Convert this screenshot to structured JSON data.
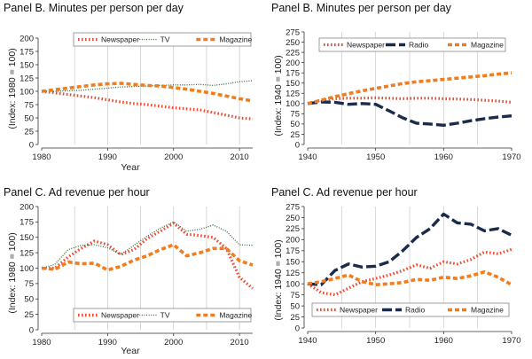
{
  "colors": {
    "newspaper": "#f0492f",
    "tv": "#2f6b3a",
    "radio": "#1b2b4b",
    "magazine": "#f07d1e"
  },
  "chart_data": [
    {
      "type": "line",
      "title": "Panel B. Minutes per person per day",
      "xlabel": "Year",
      "ylabel": "(Index: 1980 = 100)",
      "xlim": [
        1980,
        2012
      ],
      "ylim": [
        0,
        200
      ],
      "xticks": [
        1980,
        1990,
        2000,
        2010
      ],
      "yticks": [
        0,
        25,
        50,
        75,
        100,
        125,
        150,
        175,
        200
      ],
      "vgrid": [
        1985,
        1990,
        1995,
        2000,
        2005,
        2010
      ],
      "legend_position": "top",
      "series": [
        {
          "name": "Newspaper",
          "key": "newspaper",
          "style": "dotted",
          "x": [
            1980,
            1982,
            1984,
            1986,
            1988,
            1990,
            1992,
            1994,
            1996,
            1998,
            2000,
            2002,
            2004,
            2006,
            2008,
            2010,
            2012
          ],
          "values": [
            100,
            97,
            94,
            91,
            88,
            84,
            80,
            77,
            75,
            72,
            69,
            67,
            65,
            60,
            55,
            50,
            48
          ]
        },
        {
          "name": "TV",
          "key": "tv",
          "style": "fine-dot",
          "x": [
            1980,
            1982,
            1984,
            1986,
            1988,
            1990,
            1992,
            1994,
            1996,
            1998,
            2000,
            2002,
            2004,
            2006,
            2008,
            2010,
            2012
          ],
          "values": [
            100,
            100,
            101,
            102,
            104,
            106,
            108,
            109,
            110,
            111,
            112,
            112,
            113,
            111,
            114,
            118,
            120
          ]
        },
        {
          "name": "Magazine",
          "key": "magazine",
          "style": "dashed",
          "x": [
            1980,
            1982,
            1984,
            1986,
            1988,
            1990,
            1992,
            1994,
            1996,
            1998,
            2000,
            2002,
            2004,
            2006,
            2008,
            2010,
            2012
          ],
          "values": [
            100,
            103,
            106,
            109,
            112,
            114,
            115,
            113,
            111,
            110,
            107,
            104,
            100,
            96,
            91,
            86,
            82
          ]
        }
      ]
    },
    {
      "type": "line",
      "title": "Panel B. Minutes per person per day",
      "xlabel": "",
      "ylabel": "(Index: 1940 = 100)",
      "xlim": [
        1940,
        1970
      ],
      "ylim": [
        0,
        275
      ],
      "xticks": [
        1940,
        1950,
        1960,
        1970
      ],
      "yticks": [
        0,
        25,
        50,
        75,
        100,
        125,
        150,
        175,
        200,
        225,
        250,
        275
      ],
      "vgrid": [
        1945,
        1950,
        1955,
        1960,
        1965
      ],
      "legend_position": "top",
      "series": [
        {
          "name": "Newspaper",
          "key": "newspaper",
          "style": "dotted",
          "x": [
            1940,
            1942,
            1944,
            1946,
            1948,
            1950,
            1952,
            1954,
            1956,
            1958,
            1960,
            1962,
            1964,
            1966,
            1968,
            1970
          ],
          "values": [
            100,
            108,
            112,
            113,
            113,
            114,
            113,
            112,
            113,
            113,
            112,
            111,
            110,
            108,
            106,
            103
          ]
        },
        {
          "name": "Radio",
          "key": "radio",
          "style": "dashed-long",
          "x": [
            1940,
            1942,
            1944,
            1946,
            1948,
            1950,
            1952,
            1954,
            1956,
            1958,
            1960,
            1962,
            1964,
            1966,
            1968,
            1970
          ],
          "values": [
            100,
            104,
            103,
            98,
            100,
            98,
            82,
            65,
            52,
            50,
            47,
            52,
            58,
            63,
            67,
            70
          ]
        },
        {
          "name": "Magazine",
          "key": "magazine",
          "style": "dashed",
          "x": [
            1940,
            1942,
            1944,
            1946,
            1948,
            1950,
            1952,
            1954,
            1956,
            1958,
            1960,
            1962,
            1964,
            1966,
            1968,
            1970
          ],
          "values": [
            100,
            108,
            117,
            124,
            131,
            137,
            143,
            149,
            153,
            156,
            159,
            162,
            165,
            168,
            172,
            175
          ]
        }
      ]
    },
    {
      "type": "line",
      "title": "Panel C. Ad revenue per hour",
      "xlabel": "Year",
      "ylabel": "(Index: 1980 = 100)",
      "xlim": [
        1980,
        2012
      ],
      "ylim": [
        0,
        200
      ],
      "xticks": [
        1980,
        1990,
        2000,
        2010
      ],
      "yticks": [
        0,
        25,
        50,
        75,
        100,
        125,
        150,
        175,
        200
      ],
      "vgrid": [
        1985,
        1990,
        1995,
        2000,
        2005,
        2010
      ],
      "legend_position": "bottom",
      "series": [
        {
          "name": "Newspaper",
          "key": "newspaper",
          "style": "dotted",
          "x": [
            1980,
            1982,
            1984,
            1986,
            1988,
            1990,
            1992,
            1994,
            1996,
            1998,
            2000,
            2002,
            2004,
            2006,
            2008,
            2010,
            2012
          ],
          "values": [
            100,
            100,
            118,
            132,
            144,
            138,
            122,
            130,
            148,
            160,
            173,
            155,
            153,
            150,
            132,
            85,
            67
          ]
        },
        {
          "name": "TV",
          "key": "tv",
          "style": "fine-dot",
          "x": [
            1980,
            1982,
            1984,
            1986,
            1988,
            1990,
            1992,
            1994,
            1996,
            1998,
            2000,
            2002,
            2004,
            2006,
            2008,
            2010,
            2012
          ],
          "values": [
            100,
            106,
            130,
            137,
            138,
            133,
            122,
            137,
            152,
            165,
            175,
            160,
            163,
            170,
            160,
            138,
            137
          ]
        },
        {
          "name": "Magazine",
          "key": "magazine",
          "style": "dashed",
          "x": [
            1980,
            1982,
            1984,
            1986,
            1988,
            1990,
            1992,
            1994,
            1996,
            1998,
            2000,
            2002,
            2004,
            2006,
            2008,
            2010,
            2012
          ],
          "values": [
            100,
            98,
            110,
            107,
            108,
            97,
            103,
            113,
            120,
            130,
            138,
            120,
            125,
            132,
            132,
            112,
            105
          ]
        }
      ]
    },
    {
      "type": "line",
      "title": "Panel C. Ad revenue per hour",
      "xlabel": "",
      "ylabel": "(Index: 1940 = 100)",
      "xlim": [
        1940,
        1970
      ],
      "ylim": [
        0,
        275
      ],
      "xticks": [
        1940,
        1950,
        1960,
        1970
      ],
      "yticks": [
        0,
        25,
        50,
        75,
        100,
        125,
        150,
        175,
        200,
        225,
        250,
        275
      ],
      "vgrid": [
        1945,
        1950,
        1955,
        1960,
        1965
      ],
      "legend_position": "bottom",
      "series": [
        {
          "name": "Newspaper",
          "key": "newspaper",
          "style": "dotted",
          "x": [
            1940,
            1942,
            1944,
            1946,
            1948,
            1950,
            1952,
            1954,
            1956,
            1958,
            1960,
            1962,
            1964,
            1966,
            1968,
            1970
          ],
          "values": [
            100,
            80,
            75,
            90,
            105,
            112,
            120,
            130,
            143,
            135,
            150,
            145,
            155,
            172,
            168,
            178
          ]
        },
        {
          "name": "Radio",
          "key": "radio",
          "style": "dashed-long",
          "x": [
            1940,
            1942,
            1944,
            1946,
            1948,
            1950,
            1952,
            1954,
            1956,
            1958,
            1960,
            1962,
            1964,
            1966,
            1968,
            1970
          ],
          "values": [
            100,
            98,
            130,
            145,
            138,
            140,
            150,
            175,
            205,
            225,
            258,
            238,
            235,
            220,
            225,
            210
          ]
        },
        {
          "name": "Magazine",
          "key": "magazine",
          "style": "dashed",
          "x": [
            1940,
            1942,
            1944,
            1946,
            1948,
            1950,
            1952,
            1954,
            1956,
            1958,
            1960,
            1962,
            1964,
            1966,
            1968,
            1970
          ],
          "values": [
            100,
            105,
            112,
            120,
            105,
            98,
            100,
            103,
            110,
            108,
            115,
            112,
            118,
            127,
            115,
            98
          ]
        }
      ]
    }
  ]
}
